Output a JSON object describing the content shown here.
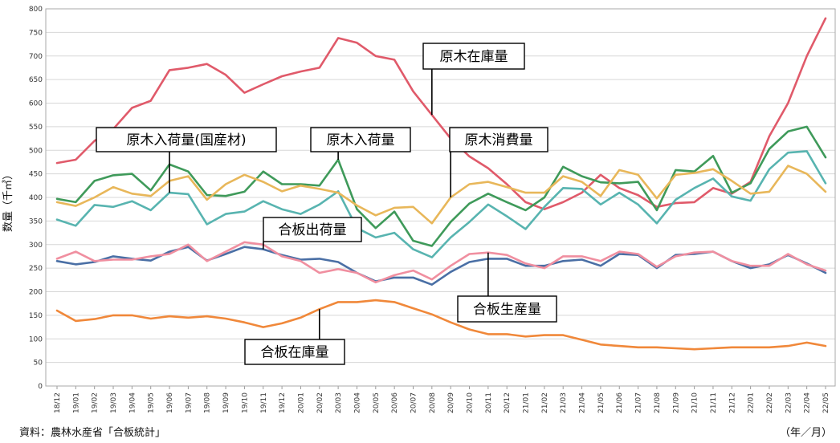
{
  "chart_data": {
    "type": "line",
    "ylabel": "数量（千㎥）",
    "ylim": [
      0,
      800
    ],
    "yticks": [
      0,
      50,
      100,
      150,
      200,
      250,
      300,
      350,
      400,
      450,
      500,
      550,
      600,
      650,
      700,
      750,
      800
    ],
    "grid": true,
    "x": [
      "18/12",
      "19/01",
      "19/02",
      "19/03",
      "19/04",
      "19/05",
      "19/06",
      "19/07",
      "19/08",
      "19/09",
      "19/10",
      "19/11",
      "19/12",
      "20/01",
      "20/02",
      "20/03",
      "20/04",
      "20/05",
      "20/06",
      "20/07",
      "20/08",
      "20/09",
      "20/10",
      "20/11",
      "20/12",
      "21/01",
      "21/02",
      "21/03",
      "21/04",
      "21/05",
      "21/06",
      "21/07",
      "21/08",
      "21/09",
      "21/10",
      "21/11",
      "21/12",
      "22/01",
      "22/02",
      "22/03",
      "22/04",
      "22/05"
    ],
    "series": [
      {
        "name": "原木在庫量",
        "color": "#e05a6a",
        "values": [
          473,
          480,
          520,
          545,
          590,
          605,
          670,
          675,
          683,
          660,
          622,
          640,
          657,
          667,
          675,
          738,
          728,
          700,
          692,
          625,
          575,
          525,
          487,
          462,
          428,
          390,
          375,
          390,
          410,
          448,
          420,
          405,
          380,
          388,
          390,
          420,
          408,
          433,
          530,
          600,
          700,
          780
        ]
      },
      {
        "name": "原木入荷量(国産材)",
        "color": "#58b4b0",
        "values": [
          353,
          340,
          384,
          380,
          392,
          373,
          410,
          407,
          343,
          365,
          370,
          392,
          375,
          365,
          385,
          413,
          335,
          315,
          325,
          290,
          273,
          315,
          348,
          385,
          360,
          333,
          380,
          420,
          418,
          385,
          410,
          385,
          345,
          395,
          420,
          440,
          402,
          393,
          460,
          495,
          498,
          430
        ]
      },
      {
        "name": "原木入荷量",
        "color": "#3f9a5a",
        "values": [
          397,
          390,
          435,
          447,
          450,
          415,
          470,
          455,
          405,
          403,
          412,
          455,
          428,
          428,
          425,
          480,
          375,
          335,
          370,
          308,
          297,
          348,
          387,
          408,
          390,
          373,
          400,
          465,
          445,
          432,
          430,
          433,
          373,
          458,
          455,
          488,
          410,
          430,
          503,
          540,
          550,
          485
        ]
      },
      {
        "name": "原木消費量",
        "color": "#e8b75a",
        "values": [
          390,
          382,
          400,
          422,
          408,
          403,
          435,
          445,
          395,
          428,
          448,
          433,
          413,
          425,
          418,
          410,
          383,
          362,
          378,
          380,
          345,
          400,
          428,
          433,
          422,
          410,
          410,
          445,
          433,
          403,
          458,
          448,
          398,
          448,
          452,
          460,
          435,
          408,
          412,
          467,
          450,
          412
        ]
      },
      {
        "name": "合板出荷量",
        "color": "#4a6fa5",
        "values": [
          265,
          258,
          263,
          275,
          270,
          266,
          285,
          295,
          266,
          280,
          295,
          290,
          278,
          268,
          270,
          263,
          240,
          222,
          230,
          230,
          215,
          242,
          263,
          270,
          270,
          255,
          255,
          265,
          268,
          255,
          280,
          278,
          250,
          278,
          280,
          285,
          265,
          250,
          258,
          278,
          260,
          240
        ]
      },
      {
        "name": "合板生産量",
        "color": "#f08fa0",
        "values": [
          270,
          285,
          265,
          268,
          268,
          275,
          280,
          300,
          265,
          285,
          305,
          300,
          275,
          265,
          240,
          248,
          240,
          220,
          235,
          245,
          226,
          255,
          280,
          283,
          278,
          260,
          250,
          275,
          275,
          265,
          285,
          280,
          253,
          275,
          283,
          285,
          265,
          255,
          255,
          280,
          258,
          245
        ]
      },
      {
        "name": "合板在庫量",
        "color": "#f0883a",
        "values": [
          160,
          138,
          142,
          150,
          150,
          143,
          148,
          145,
          148,
          143,
          135,
          125,
          133,
          145,
          163,
          178,
          178,
          182,
          178,
          165,
          152,
          135,
          120,
          110,
          110,
          105,
          108,
          108,
          98,
          88,
          85,
          82,
          82,
          80,
          78,
          80,
          82,
          82,
          82,
          85,
          92,
          85
        ]
      }
    ],
    "annotations": [
      {
        "text": "原木在庫量",
        "series": "原木在庫量"
      },
      {
        "text": "原木入荷量(国産材)",
        "series": "原木入荷量(国産材)"
      },
      {
        "text": "原木入荷量",
        "series": "原木入荷量"
      },
      {
        "text": "原木消費量",
        "series": "原木消費量"
      },
      {
        "text": "合板出荷量",
        "series": "合板出荷量"
      },
      {
        "text": "合板生産量",
        "series": "合板生産量"
      },
      {
        "text": "合板在庫量",
        "series": "合板在庫量"
      }
    ]
  },
  "footer": {
    "source": "資料：農林水産省「合板統計」",
    "unit_note": "（年／月）"
  }
}
